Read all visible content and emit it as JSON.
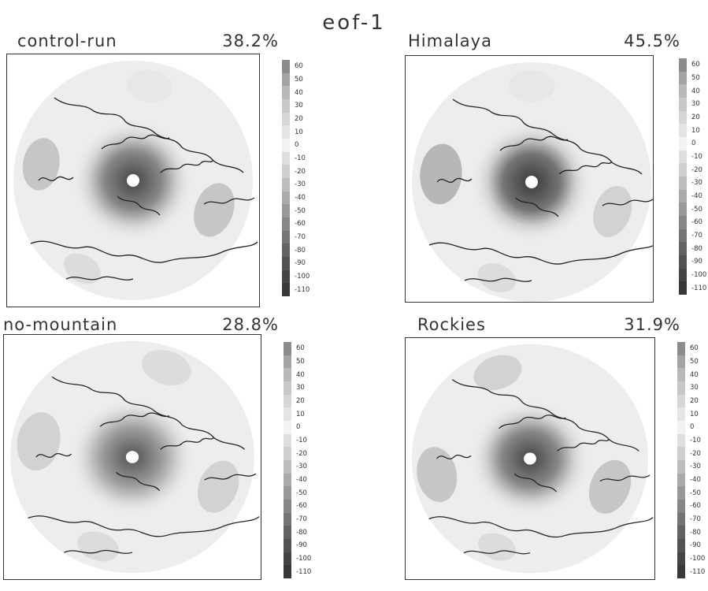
{
  "title": "eof-1",
  "colorbar": {
    "ticks": [
      "60",
      "50",
      "40",
      "30",
      "20",
      "10",
      "0",
      "-10",
      "-20",
      "-30",
      "-40",
      "-50",
      "-60",
      "-70",
      "-80",
      "-90",
      "-100",
      "-110"
    ],
    "colors": [
      "#8c8c8c",
      "#a4a4a4",
      "#b8b8b8",
      "#c8c8c8",
      "#d6d6d6",
      "#e4e4e4",
      "#f2f2f2",
      "#dedede",
      "#cecece",
      "#bcbcbc",
      "#aaaaaa",
      "#989898",
      "#868686",
      "#747474",
      "#626262",
      "#525252",
      "#444444",
      "#383838"
    ]
  },
  "panels": [
    {
      "name": "control-run",
      "pct": "38.2%",
      "center_value": -100,
      "anomalies": [
        {
          "value": 35,
          "lon": 20,
          "colat": 0.72,
          "size": 0.42
        },
        {
          "value": 40,
          "lon": 190,
          "colat": 0.78,
          "size": 0.4
        },
        {
          "value": 20,
          "lon": 120,
          "colat": 0.85,
          "size": 0.3
        },
        {
          "value": 10,
          "lon": 280,
          "colat": 0.8,
          "size": 0.35
        }
      ]
    },
    {
      "name": "Himalaya",
      "pct": "45.5%",
      "center_value": -110,
      "anomalies": [
        {
          "value": 30,
          "lon": 20,
          "colat": 0.72,
          "size": 0.4
        },
        {
          "value": 45,
          "lon": 185,
          "colat": 0.76,
          "size": 0.46
        },
        {
          "value": 20,
          "lon": 110,
          "colat": 0.85,
          "size": 0.3
        },
        {
          "value": 10,
          "lon": 270,
          "colat": 0.8,
          "size": 0.35
        }
      ]
    },
    {
      "name": "no-mountain",
      "pct": "28.8%",
      "center_value": -90,
      "anomalies": [
        {
          "value": 25,
          "lon": 20,
          "colat": 0.75,
          "size": 0.42
        },
        {
          "value": 30,
          "lon": 190,
          "colat": 0.78,
          "size": 0.46
        },
        {
          "value": 20,
          "lon": 290,
          "colat": 0.82,
          "size": 0.38
        },
        {
          "value": 15,
          "lon": 110,
          "colat": 0.82,
          "size": 0.32
        }
      ]
    },
    {
      "name": "Rockies",
      "pct": "31.9%",
      "center_value": -100,
      "anomalies": [
        {
          "value": 40,
          "lon": 20,
          "colat": 0.72,
          "size": 0.44
        },
        {
          "value": 35,
          "lon": 170,
          "colat": 0.8,
          "size": 0.44
        },
        {
          "value": 30,
          "lon": 250,
          "colat": 0.8,
          "size": 0.38
        },
        {
          "value": 20,
          "lon": 110,
          "colat": 0.82,
          "size": 0.3
        }
      ]
    }
  ]
}
